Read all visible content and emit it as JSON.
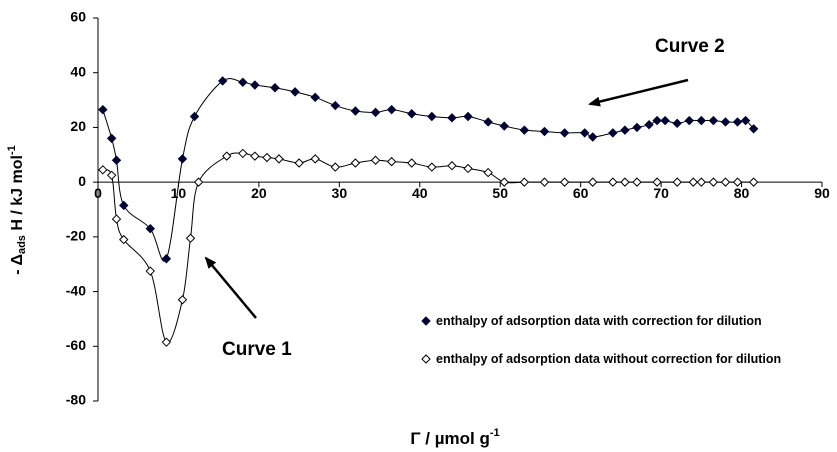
{
  "chart_data": {
    "type": "scatter",
    "x_label": {
      "main": "Γ / µmol g",
      "sup": "-1"
    },
    "y_label": {
      "pre": "- Δ",
      "sub": "ads",
      "main": " H / kJ mol",
      "sup": "-1"
    },
    "annotations": [
      "Curve 2",
      "Curve 1"
    ],
    "xlim": [
      0,
      90
    ],
    "xticks": [
      0,
      10,
      20,
      30,
      40,
      50,
      60,
      70,
      80,
      90
    ],
    "ylim": [
      -80,
      60
    ],
    "yticks": [
      -80,
      -60,
      -40,
      -20,
      0,
      20,
      40,
      60
    ],
    "series": [
      {
        "name": "enthalpy of adsorption data with correction for dilution",
        "color": "#000033",
        "marker": "filled-diamond",
        "x": [
          0.6,
          1.7,
          2.3,
          3.2,
          6.5,
          8.5,
          10.5,
          12,
          15.5,
          18,
          19.5,
          22,
          24.5,
          27,
          29.5,
          32,
          34.5,
          36.5,
          39,
          41.5,
          44,
          46,
          48.5,
          50.5,
          53,
          55.5,
          58,
          60.5,
          61.5,
          64,
          65.5,
          67,
          68.5,
          69.5,
          70.5,
          72,
          73.5,
          75,
          76.5,
          78,
          79.5,
          80.5,
          81.5
        ],
        "values": [
          26.5,
          16,
          8,
          -8.5,
          -17,
          -28,
          8.5,
          24,
          37,
          36.5,
          35.5,
          34.5,
          33,
          31,
          28,
          26,
          25.5,
          26.5,
          25,
          24,
          23.5,
          24,
          22,
          20.5,
          19,
          18.5,
          18,
          18,
          16.5,
          18,
          19,
          20,
          21,
          22.5,
          22.5,
          21.5,
          22.5,
          22.5,
          22.5,
          22,
          22,
          22.5,
          19.5
        ]
      },
      {
        "name": "enthalpy of adsorption  data without correction for dilution",
        "color": "#000000",
        "marker": "open-diamond",
        "x": [
          0.6,
          1.7,
          2.3,
          3.2,
          6.5,
          8.5,
          10.5,
          11.5,
          12.5,
          16,
          18,
          19.5,
          21,
          22.5,
          25,
          27,
          29.5,
          32,
          34.5,
          36.5,
          39,
          41.5,
          44,
          46,
          48.5,
          50.5,
          53,
          55.5,
          58,
          61.5,
          64,
          65.5,
          67,
          69.5,
          72,
          74,
          75,
          76.5,
          78,
          79.5,
          81.5
        ],
        "values": [
          4.5,
          2.5,
          -13.5,
          -21,
          -32.5,
          -58.5,
          -43,
          -20.5,
          0,
          9.5,
          10.5,
          9.5,
          9,
          8.5,
          7,
          8.5,
          5.5,
          7,
          8,
          7.5,
          7,
          5.5,
          6,
          5,
          3.5,
          0,
          0,
          0,
          0,
          0,
          0,
          0,
          0,
          0,
          0,
          0,
          0,
          0,
          0,
          0,
          0
        ]
      }
    ]
  }
}
